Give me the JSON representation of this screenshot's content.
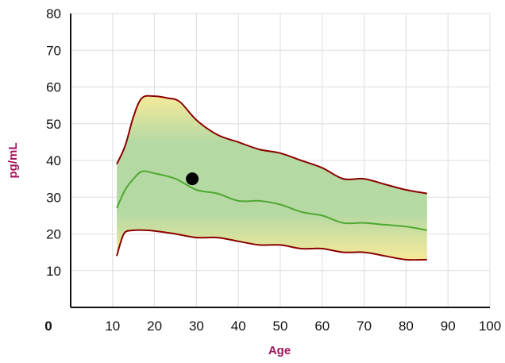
{
  "chart_data": {
    "type": "line",
    "title": "",
    "xlabel": "Age",
    "ylabel": "pg/mL",
    "xlim": [
      0,
      100
    ],
    "ylim": [
      0,
      80
    ],
    "x_ticks": [
      "0",
      "10",
      "20",
      "30",
      "40",
      "50",
      "60",
      "70",
      "80",
      "90",
      "100"
    ],
    "y_ticks": [
      "10",
      "20",
      "30",
      "40",
      "50",
      "60",
      "70",
      "80"
    ],
    "grid": true,
    "series": [
      {
        "role": "upper",
        "x": [
          11,
          13,
          15,
          17,
          20,
          23,
          26,
          30,
          35,
          40,
          45,
          50,
          55,
          60,
          65,
          70,
          75,
          80,
          85
        ],
        "values": [
          39,
          44,
          52,
          57,
          57.5,
          57,
          56,
          51,
          47,
          45,
          43,
          42,
          40,
          38,
          35,
          35,
          33.5,
          32,
          31
        ]
      },
      {
        "role": "median",
        "x": [
          11,
          13,
          15,
          17,
          20,
          25,
          30,
          35,
          40,
          45,
          50,
          55,
          60,
          65,
          70,
          75,
          80,
          85
        ],
        "values": [
          27,
          32,
          35,
          37,
          36.5,
          35,
          32,
          31,
          29,
          29,
          28,
          26,
          25,
          23,
          23,
          22.5,
          22,
          21
        ]
      },
      {
        "role": "lower",
        "x": [
          11,
          12,
          13,
          15,
          18,
          20,
          25,
          30,
          35,
          40,
          45,
          50,
          55,
          60,
          65,
          70,
          75,
          80,
          85
        ],
        "values": [
          14,
          18,
          20.5,
          21,
          21,
          20.8,
          20,
          19,
          19,
          18,
          17,
          17,
          16,
          16,
          15,
          15,
          14,
          13,
          13
        ]
      }
    ],
    "marker": {
      "x": 29,
      "y": 35
    },
    "colors": {
      "bound_line": "#8b0000",
      "median_line": "#4ea832",
      "band_inner": "#b5d9a3",
      "band_edge": "#f6ea9a",
      "marker": "#000000",
      "axis": "#111111",
      "grid": "#dddddd",
      "axis_title": "#a0155a"
    }
  }
}
